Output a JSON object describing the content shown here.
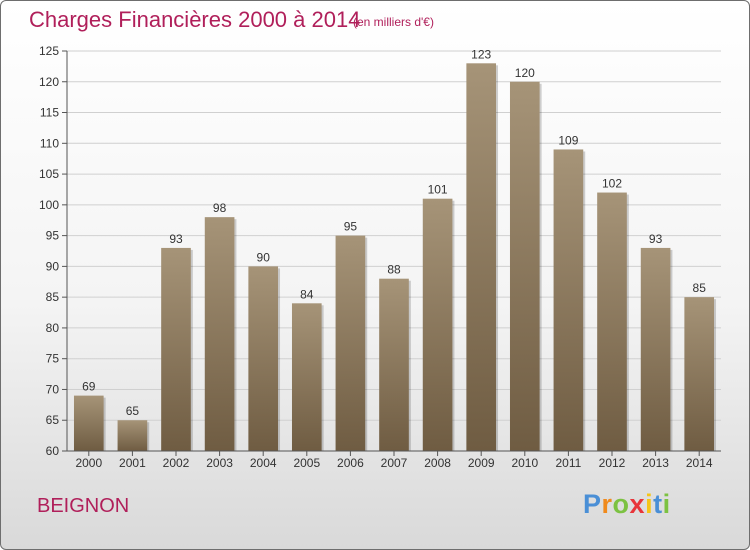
{
  "header": {
    "title": "Charges Financières 2000 à 2014",
    "subtitle": "(en milliers d'€)"
  },
  "footer": {
    "commune": "BEIGNON",
    "logo_letters": [
      "P",
      "r",
      "o",
      "x",
      "i",
      "t",
      "i"
    ]
  },
  "colors": {
    "title": "#b01f5a",
    "bar_top": "#a69478",
    "bar_bottom": "#6f5c42",
    "logo": [
      "#4a8fd6",
      "#f08a1c",
      "#7cc242",
      "#e8353a",
      "#f5c518",
      "#4a8fd6",
      "#7cc242"
    ]
  },
  "chart_data": {
    "type": "bar",
    "title": "Charges Financières 2000 à 2014",
    "subtitle": "(en milliers d'€)",
    "categories": [
      "2000",
      "2001",
      "2002",
      "2003",
      "2004",
      "2005",
      "2006",
      "2007",
      "2008",
      "2009",
      "2010",
      "2011",
      "2012",
      "2013",
      "2014"
    ],
    "values": [
      69,
      65,
      93,
      98,
      90,
      84,
      95,
      88,
      101,
      123,
      120,
      109,
      102,
      93,
      85
    ],
    "ylim": [
      60,
      125
    ],
    "yticks": [
      60,
      65,
      70,
      75,
      80,
      85,
      90,
      95,
      100,
      105,
      110,
      115,
      120,
      125
    ],
    "xlabel": "",
    "ylabel": "",
    "grid": "horizontal",
    "legend": "none"
  }
}
